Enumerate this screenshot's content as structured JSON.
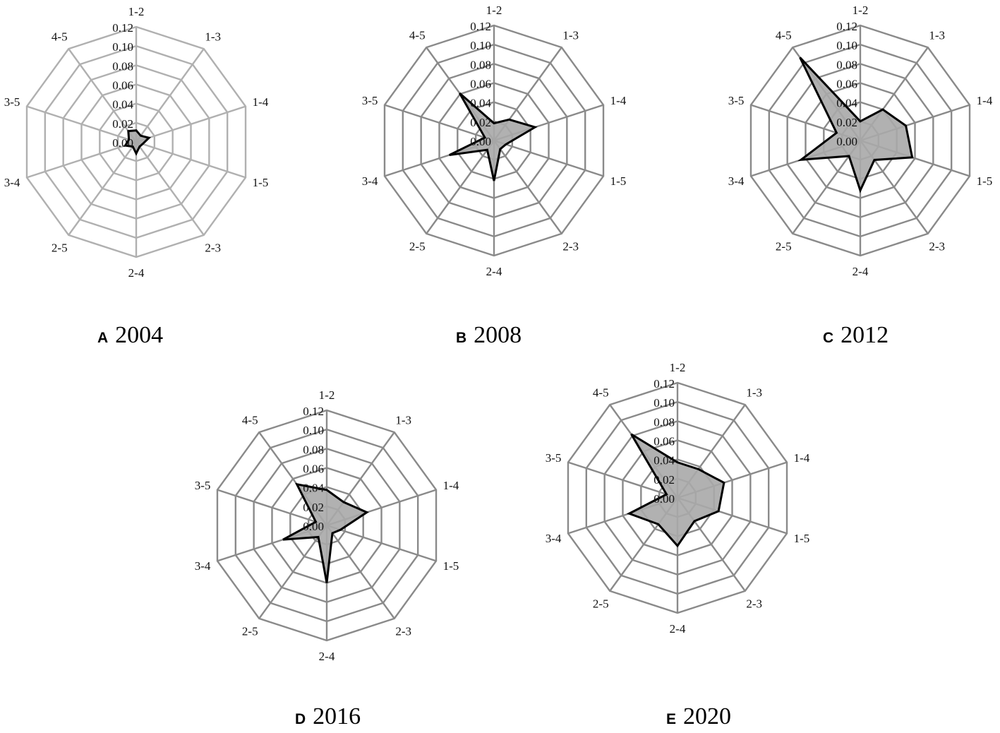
{
  "colors": {
    "grid": "#8a8a8a",
    "grid_light": "#b0b0b0",
    "fill": "#a8a8a8",
    "outline": "#000000",
    "text": "#111111"
  },
  "chart_data": [
    {
      "type": "radar",
      "panel": "A",
      "caption": "2004",
      "categories": [
        "1-2",
        "1-3",
        "1-4",
        "1-5",
        "2-3",
        "2-4",
        "2-5",
        "3-4",
        "3-5",
        "4-5"
      ],
      "rlim": [
        0,
        0.12
      ],
      "rticks": [
        "0.00",
        "0.02",
        "0.04",
        "0.06",
        "0.08",
        "0.10",
        "0.12"
      ],
      "series": [
        {
          "values": [
            0.012,
            0.008,
            0.014,
            0.007,
            0.006,
            0.012,
            0.006,
            0.012,
            0.008,
            0.014
          ]
        }
      ]
    },
    {
      "type": "radar",
      "panel": "B",
      "caption": "2008",
      "categories": [
        "1-2",
        "1-3",
        "1-4",
        "1-5",
        "2-3",
        "2-4",
        "2-5",
        "3-4",
        "3-5",
        "4-5"
      ],
      "rlim": [
        0,
        0.12
      ],
      "rticks": [
        "0.00",
        "0.02",
        "0.04",
        "0.06",
        "0.08",
        "0.10",
        "0.12"
      ],
      "series": [
        {
          "values": [
            0.018,
            0.027,
            0.045,
            0.013,
            0.011,
            0.042,
            0.012,
            0.049,
            0.01,
            0.061
          ]
        }
      ]
    },
    {
      "type": "radar",
      "panel": "C",
      "caption": "2012",
      "categories": [
        "1-2",
        "1-3",
        "1-4",
        "1-5",
        "2-3",
        "2-4",
        "2-5",
        "3-4",
        "3-5",
        "4-5"
      ],
      "rlim": [
        0,
        0.12
      ],
      "rticks": [
        "0.00",
        "0.02",
        "0.04",
        "0.06",
        "0.08",
        "0.10",
        "0.12"
      ],
      "series": [
        {
          "values": [
            0.02,
            0.04,
            0.05,
            0.057,
            0.025,
            0.052,
            0.02,
            0.065,
            0.026,
            0.107
          ]
        }
      ]
    },
    {
      "type": "radar",
      "panel": "D",
      "caption": "2016",
      "categories": [
        "1-2",
        "1-3",
        "1-4",
        "1-5",
        "2-3",
        "2-4",
        "2-5",
        "3-4",
        "3-5",
        "4-5"
      ],
      "rlim": [
        0,
        0.12
      ],
      "rticks": [
        "0.00",
        "0.02",
        "0.04",
        "0.06",
        "0.08",
        "0.10",
        "0.12"
      ],
      "series": [
        {
          "values": [
            0.037,
            0.03,
            0.044,
            0.015,
            0.01,
            0.06,
            0.015,
            0.048,
            0.012,
            0.053
          ]
        }
      ]
    },
    {
      "type": "radar",
      "panel": "E",
      "caption": "2020",
      "categories": [
        "1-2",
        "1-3",
        "1-4",
        "1-5",
        "2-3",
        "2-4",
        "2-5",
        "3-4",
        "3-5",
        "4-5"
      ],
      "rlim": [
        0,
        0.12
      ],
      "rticks": [
        "0.00",
        "0.02",
        "0.04",
        "0.06",
        "0.08",
        "0.10",
        "0.12"
      ],
      "series": [
        {
          "values": [
            0.037,
            0.037,
            0.051,
            0.045,
            0.03,
            0.05,
            0.034,
            0.053,
            0.012,
            0.082
          ]
        }
      ]
    }
  ]
}
